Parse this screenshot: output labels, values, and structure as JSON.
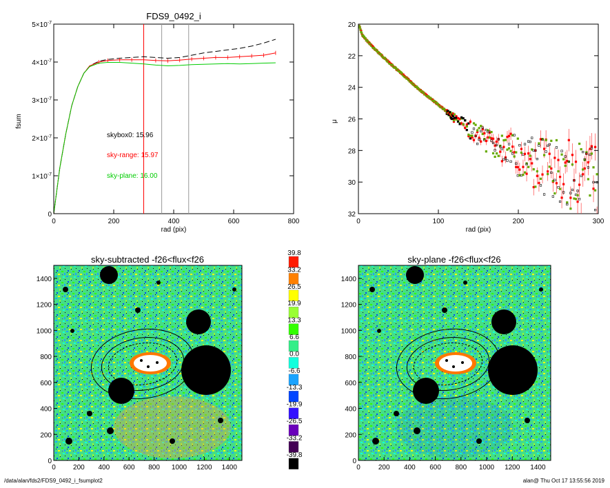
{
  "footer": {
    "path": "/data/alan/fds2/FDS9_0492_i_fsumplot2",
    "stamp": "alan@  Thu Oct 17 13:55:56 2019"
  },
  "colorbar": {
    "labels": [
      "39.8",
      "33.2",
      "26.5",
      "19.9",
      "13.3",
      "6.6",
      "0.0",
      "-6.6",
      "-13.3",
      "-19.9",
      "-26.5",
      "-33.2",
      "-39.8"
    ],
    "colors": [
      "#ff1a00",
      "#ff8000",
      "#ffff00",
      "#99ff33",
      "#33ff00",
      "#33ee88",
      "#11ffdd",
      "#1aa3ff",
      "#0044ff",
      "#3311ff",
      "#6a00bb",
      "#440055",
      "#000000"
    ]
  },
  "chart_data": [
    {
      "type": "line",
      "title": "FDS9_0492_i",
      "xlabel": "rad (pix)",
      "ylabel": "fsum",
      "xlim": [
        0,
        800
      ],
      "ylim": [
        0,
        5e-07
      ],
      "xticks": [
        "0",
        "200",
        "400",
        "600",
        "800"
      ],
      "yticks": [
        {
          "base": "0",
          "exp": ""
        },
        {
          "base": "1×10",
          "exp": "-7"
        },
        {
          "base": "2×10",
          "exp": "-7"
        },
        {
          "base": "3×10",
          "exp": "-7"
        },
        {
          "base": "4×10",
          "exp": "-7"
        },
        {
          "base": "5×10",
          "exp": "-7"
        }
      ],
      "vlines": [
        {
          "x": 300,
          "color": "#ff0000"
        },
        {
          "x": 360,
          "color": "#999999"
        },
        {
          "x": 450,
          "color": "#999999"
        }
      ],
      "annotations": [
        {
          "text": "skybox0: 15.96",
          "color": "#000000"
        },
        {
          "text": "sky-range: 15.97",
          "color": "#ff0000"
        },
        {
          "text": "sky-plane: 16.00",
          "color": "#00cc00"
        }
      ],
      "series": [
        {
          "color": "#000000",
          "style": "dashed",
          "x": [
            0,
            20,
            40,
            60,
            80,
            100,
            120,
            150,
            180,
            220,
            260,
            300,
            340,
            380,
            420,
            460,
            500,
            540,
            580,
            620,
            660,
            700,
            740
          ],
          "y": [
            0,
            1.2e-07,
            2.1e-07,
            2.85e-07,
            3.35e-07,
            3.7e-07,
            3.9e-07,
            4.02e-07,
            4.07e-07,
            4.1e-07,
            4.12e-07,
            4.14e-07,
            4.12e-07,
            4.1e-07,
            4.12e-07,
            4.18e-07,
            4.24e-07,
            4.28e-07,
            4.32e-07,
            4.36e-07,
            4.42e-07,
            4.5e-07,
            4.6e-07
          ]
        },
        {
          "color": "#ff0000",
          "style": "solid",
          "x": [
            0,
            20,
            40,
            60,
            80,
            100,
            120,
            150,
            180,
            220,
            260,
            300,
            340,
            380,
            420,
            460,
            500,
            540,
            580,
            620,
            660,
            700,
            740
          ],
          "y": [
            0,
            1.2e-07,
            2.1e-07,
            2.85e-07,
            3.35e-07,
            3.7e-07,
            3.9e-07,
            4e-07,
            4.04e-07,
            4.06e-07,
            4.06e-07,
            4.06e-07,
            4.04e-07,
            4.03e-07,
            4.05e-07,
            4.08e-07,
            4.1e-07,
            4.12e-07,
            4.12e-07,
            4.14e-07,
            4.16e-07,
            4.18e-07,
            4.24e-07
          ]
        },
        {
          "color": "#00cc00",
          "style": "solid",
          "x": [
            0,
            20,
            40,
            60,
            80,
            100,
            120,
            150,
            180,
            220,
            260,
            300,
            340,
            380,
            420,
            460,
            500,
            540,
            580,
            620,
            660,
            700,
            740
          ],
          "y": [
            0,
            1.2e-07,
            2.1e-07,
            2.85e-07,
            3.35e-07,
            3.7e-07,
            3.88e-07,
            3.97e-07,
            3.99e-07,
            3.99e-07,
            3.97e-07,
            3.95e-07,
            3.92e-07,
            3.9e-07,
            3.91e-07,
            3.93e-07,
            3.94e-07,
            3.95e-07,
            3.96e-07,
            3.95e-07,
            3.96e-07,
            3.97e-07,
            3.98e-07
          ]
        }
      ]
    },
    {
      "type": "scatter",
      "title": "",
      "xlabel": "rad (pix)",
      "ylabel": "μ",
      "xlim": [
        0,
        300
      ],
      "ylim": [
        32,
        20
      ],
      "xticks": [
        "0",
        "100",
        "200",
        "300"
      ],
      "yticks": [
        "20",
        "22",
        "24",
        "26",
        "28",
        "30",
        "32"
      ],
      "profile": [
        {
          "x": 1,
          "mu": 20.1
        },
        {
          "x": 5,
          "mu": 20.7
        },
        {
          "x": 10,
          "mu": 21.0
        },
        {
          "x": 20,
          "mu": 21.55
        },
        {
          "x": 40,
          "mu": 22.5
        },
        {
          "x": 60,
          "mu": 23.4
        },
        {
          "x": 80,
          "mu": 24.3
        },
        {
          "x": 100,
          "mu": 25.1
        },
        {
          "x": 120,
          "mu": 25.9
        },
        {
          "x": 140,
          "mu": 26.6
        },
        {
          "x": 160,
          "mu": 27.2
        },
        {
          "x": 180,
          "mu": 27.7
        },
        {
          "x": 200,
          "mu": 28.1
        },
        {
          "x": 220,
          "mu": 28.5
        },
        {
          "x": 250,
          "mu": 28.9
        },
        {
          "x": 280,
          "mu": 29.3
        },
        {
          "x": 300,
          "mu": 29.5
        }
      ],
      "series_colors": [
        "#ff0000",
        "#66aa00",
        "#000000",
        "#66ff66"
      ]
    },
    {
      "type": "heatmap",
      "title": "sky-subtracted -f26<flux<f26",
      "xlim": [
        0,
        1500
      ],
      "ylim": [
        0,
        1500
      ],
      "xticks": [
        "0",
        "200",
        "400",
        "600",
        "800",
        "1000",
        "1200",
        "1400"
      ],
      "yticks": [
        "0",
        "200",
        "400",
        "600",
        "800",
        "1000",
        "1200",
        "1400"
      ]
    },
    {
      "type": "heatmap",
      "title": "sky-plane -f26<flux<f26",
      "xlim": [
        0,
        1500
      ],
      "ylim": [
        0,
        1500
      ],
      "xticks": [
        "0",
        "200",
        "400",
        "600",
        "800",
        "1000",
        "1200",
        "1400"
      ],
      "yticks": [
        "0",
        "200",
        "400",
        "600",
        "800",
        "1000",
        "1200",
        "1400"
      ]
    }
  ]
}
